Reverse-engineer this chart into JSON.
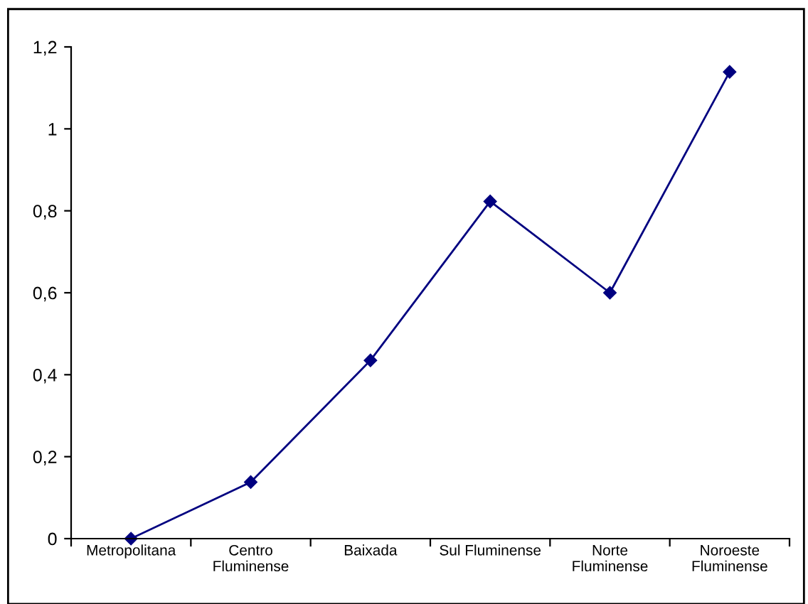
{
  "chart_data": {
    "type": "line",
    "categories": [
      "Metropolitana",
      "Centro\nFluminense",
      "Baixada",
      "Sul Fluminense",
      "Norte\nFluminense",
      "Noroeste\nFluminense"
    ],
    "series": [
      {
        "color": "#000080",
        "values": [
          0,
          0.138,
          0.435,
          0.823,
          0.6,
          1.139
        ]
      }
    ],
    "ylim": [
      0,
      1.2
    ],
    "yticks": [
      0,
      {
        "value": 0.2,
        "label": "0,2"
      },
      {
        "value": 0.4,
        "label": "0,4"
      },
      {
        "value": 0.6,
        "label": "0,6"
      },
      {
        "value": 0.8,
        "label": "0,8"
      },
      1,
      {
        "value": 1.2,
        "label": "1,2"
      }
    ],
    "marker": "diamond",
    "line_style": "solid",
    "grid": false,
    "legend": false
  }
}
